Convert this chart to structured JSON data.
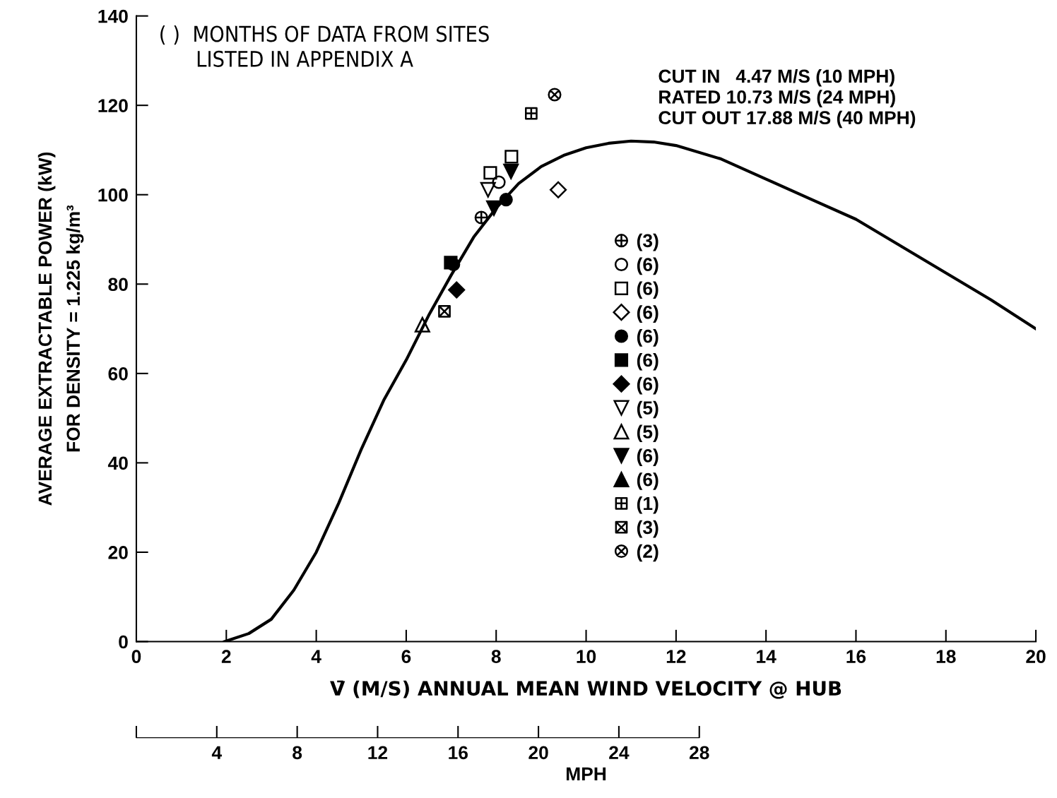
{
  "chart_data": {
    "type": "scatter",
    "xlabel": "V̄ (M/S) ANNUAL MEAN WIND VELOCITY @ HUB",
    "ylabel": "AVERAGE EXTRACTABLE POWER (kW)\nFOR DENSITY = 1.225 kg/m³",
    "x2label": "MPH",
    "xlim": [
      0,
      20
    ],
    "xticks": [
      0,
      2,
      4,
      6,
      8,
      10,
      12,
      14,
      16,
      18,
      20
    ],
    "ylim": [
      0,
      140
    ],
    "yticks": [
      0,
      20,
      40,
      60,
      80,
      100,
      120,
      140
    ],
    "x2lim": [
      0,
      44.74
    ],
    "x2ticks": [
      {
        "value": 0,
        "label": null
      },
      4,
      8,
      12,
      16,
      20,
      24,
      28
    ],
    "grid": false,
    "legend": "center",
    "annotations": [
      "( )  MONTHS OF DATA FROM SITES\n      LISTED IN APPENDIX A",
      "CUT IN   4.47 M/S (10 MPH)\nRATED 10.73 M/S (24 MPH)\nCUT OUT 17.88 M/S (40 MPH)"
    ],
    "series": [
      {
        "type": "line",
        "color": "#000000",
        "marker": "none",
        "line_style": "solid",
        "x": [
          1.96,
          2.5,
          3,
          3.5,
          4,
          4.5,
          5,
          5.5,
          6,
          6.5,
          7,
          7.5,
          8,
          8.5,
          9,
          9.5,
          10,
          10.5,
          11,
          11.5,
          12,
          13,
          14,
          15,
          16,
          17,
          18,
          19,
          20
        ],
        "values": [
          0,
          1.8,
          5,
          11.5,
          20,
          31,
          43,
          54,
          63,
          73,
          82,
          90.5,
          97,
          102.5,
          106.3,
          108.8,
          110.5,
          111.5,
          112,
          111.8,
          111,
          108,
          103.5,
          99,
          94.5,
          88.5,
          82.5,
          76.5,
          70
        ]
      },
      {
        "name": "(3)",
        "color": "#000000",
        "x": [
          7.67
        ],
        "values": [
          94.9
        ]
      },
      {
        "name": "(6)",
        "color": "#000000",
        "marker": "circle",
        "x": [
          8.06
        ],
        "values": [
          102.8
        ]
      },
      {
        "name": "(6)",
        "color": "#000000",
        "marker": "square",
        "x": [
          7.87,
          8.34
        ],
        "values": [
          104.9,
          108.5
        ]
      },
      {
        "name": "(6)",
        "color": "#000000",
        "marker": "diamond",
        "x": [
          9.38
        ],
        "values": [
          101.1
        ]
      },
      {
        "name": "(6)",
        "color": "#000000",
        "marker": "circle",
        "x": [
          8.22,
          7.05
        ],
        "values": [
          98.9,
          84.4
        ]
      },
      {
        "name": "(6)",
        "color": "#000000",
        "marker": "square",
        "x": [
          6.99
        ],
        "values": [
          84.8
        ]
      },
      {
        "name": "(6)",
        "color": "#000000",
        "marker": "diamond",
        "x": [
          7.12
        ],
        "values": [
          78.7
        ]
      },
      {
        "name": "(5)",
        "color": "#000000",
        "marker": "triangle",
        "x": [
          7.82
        ],
        "values": [
          101.1
        ]
      },
      {
        "name": "(5)",
        "color": "#000000",
        "marker": "triangle",
        "x": [
          6.36
        ],
        "values": [
          70.9
        ]
      },
      {
        "name": "(6)",
        "color": "#000000",
        "marker": "triangle",
        "x": [
          7.95,
          8.33
        ],
        "values": [
          97.0,
          105.2
        ]
      },
      {
        "name": "(6)",
        "color": "#000000",
        "marker": "triangle"
      },
      {
        "name": "(1)",
        "color": "#000000",
        "x": [
          8.78
        ],
        "values": [
          118.2
        ]
      },
      {
        "name": "(3)",
        "color": "#000000",
        "x": [
          6.85
        ],
        "values": [
          73.9
        ]
      },
      {
        "name": "(2)",
        "color": "#000000",
        "x": [
          9.3
        ],
        "values": [
          122.4
        ]
      }
    ]
  }
}
